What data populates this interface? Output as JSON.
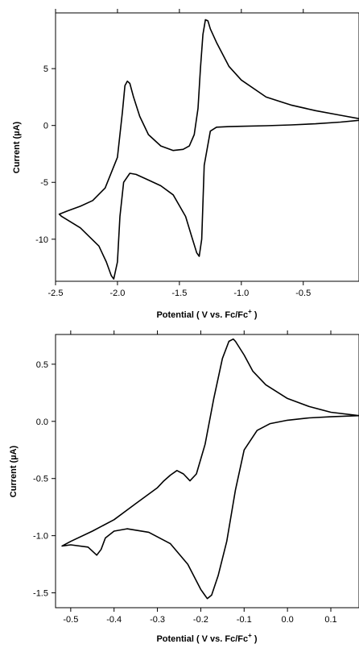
{
  "chart_data": [
    {
      "type": "line",
      "title": "",
      "xlabel": "Potential ( V vs. Fc/Fc",
      "xlabel_sup": "+",
      "xlabel_end": " )",
      "ylabel": "Current (µA)",
      "xlim": [
        -2.5,
        -0.05
      ],
      "ylim": [
        -13.7,
        9.9
      ],
      "xticks": [
        -2.5,
        -2.0,
        -1.5,
        -1.0,
        -0.5
      ],
      "xtick_labels": [
        "-2.5",
        "-2.0",
        "-1.5",
        "-1.0",
        "-0.5"
      ],
      "yticks": [
        5,
        0,
        -5,
        -10
      ],
      "ytick_labels": [
        "5",
        "0",
        "-5",
        "-10"
      ],
      "grid": false,
      "series": [
        {
          "x": [
            -0.05,
            -0.2,
            -0.4,
            -0.6,
            -0.8,
            -1.0,
            -1.1,
            -1.2,
            -1.25,
            -1.27,
            -1.29,
            -1.31,
            -1.33,
            -1.35,
            -1.38,
            -1.42,
            -1.47,
            -1.55,
            -1.65,
            -1.75,
            -1.82,
            -1.87,
            -1.9,
            -1.92,
            -1.94,
            -1.96,
            -2.0,
            -2.1,
            -2.2,
            -2.3,
            -2.4,
            -2.47,
            -2.45,
            -2.3,
            -2.15,
            -2.09,
            -2.05,
            -2.03,
            -2.0,
            -1.98,
            -1.95,
            -1.9,
            -1.85,
            -1.75,
            -1.65,
            -1.55,
            -1.45,
            -1.4,
            -1.36,
            -1.34,
            -1.32,
            -1.3,
            -1.25,
            -1.2,
            -1.1,
            -1.0,
            -0.8,
            -0.6,
            -0.4,
            -0.2,
            -0.05
          ],
          "y": [
            0.6,
            0.9,
            1.3,
            1.8,
            2.5,
            4.0,
            5.2,
            7.3,
            8.5,
            9.2,
            9.3,
            8.0,
            5.0,
            1.5,
            -0.8,
            -1.8,
            -2.1,
            -2.2,
            -1.8,
            -0.8,
            0.8,
            2.5,
            3.7,
            3.9,
            3.5,
            1.2,
            -2.8,
            -5.5,
            -6.6,
            -7.1,
            -7.5,
            -7.8,
            -8.0,
            -9.0,
            -10.6,
            -12.0,
            -13.2,
            -13.5,
            -12.0,
            -8.0,
            -5.0,
            -4.2,
            -4.3,
            -4.8,
            -5.3,
            -6.1,
            -8.0,
            -9.8,
            -11.2,
            -11.5,
            -10.0,
            -3.5,
            -0.5,
            -0.15,
            -0.1,
            -0.07,
            -0.02,
            0.05,
            0.15,
            0.3,
            0.45
          ]
        }
      ]
    },
    {
      "type": "line",
      "title": "",
      "xlabel": "Potential ( V vs. Fc/Fc",
      "xlabel_sup": "+",
      "xlabel_end": " )",
      "ylabel": "Current (µA)",
      "xlim": [
        -0.535,
        0.165
      ],
      "ylim": [
        -1.63,
        0.76
      ],
      "xticks": [
        -0.5,
        -0.4,
        -0.3,
        -0.2,
        -0.1,
        0.0,
        0.1
      ],
      "xtick_labels": [
        "-0.5",
        "-0.4",
        "-0.3",
        "-0.2",
        "-0.1",
        "0.0",
        "0.1"
      ],
      "yticks": [
        0.5,
        0.0,
        -0.5,
        -1.0,
        -1.5
      ],
      "ytick_labels": [
        "0.5",
        "0.0",
        "-0.5",
        "-1.0",
        "-1.5"
      ],
      "grid": false,
      "series": [
        {
          "x": [
            0.165,
            0.1,
            0.05,
            0.0,
            -0.05,
            -0.08,
            -0.1,
            -0.12,
            -0.125,
            -0.135,
            -0.15,
            -0.17,
            -0.19,
            -0.21,
            -0.225,
            -0.24,
            -0.255,
            -0.27,
            -0.285,
            -0.3,
            -0.35,
            -0.4,
            -0.45,
            -0.5,
            -0.52,
            -0.5,
            -0.46,
            -0.44,
            -0.43,
            -0.42,
            -0.4,
            -0.37,
            -0.32,
            -0.27,
            -0.23,
            -0.2,
            -0.185,
            -0.175,
            -0.16,
            -0.14,
            -0.12,
            -0.1,
            -0.07,
            -0.04,
            0.0,
            0.05,
            0.1,
            0.165
          ],
          "y": [
            0.05,
            0.08,
            0.13,
            0.2,
            0.32,
            0.44,
            0.58,
            0.7,
            0.72,
            0.7,
            0.55,
            0.2,
            -0.2,
            -0.46,
            -0.52,
            -0.46,
            -0.43,
            -0.47,
            -0.52,
            -0.58,
            -0.72,
            -0.86,
            -0.96,
            -1.05,
            -1.09,
            -1.08,
            -1.1,
            -1.17,
            -1.12,
            -1.02,
            -0.96,
            -0.94,
            -0.97,
            -1.07,
            -1.25,
            -1.47,
            -1.55,
            -1.52,
            -1.35,
            -1.05,
            -0.6,
            -0.25,
            -0.08,
            -0.02,
            0.01,
            0.03,
            0.04,
            0.05
          ]
        }
      ]
    }
  ]
}
